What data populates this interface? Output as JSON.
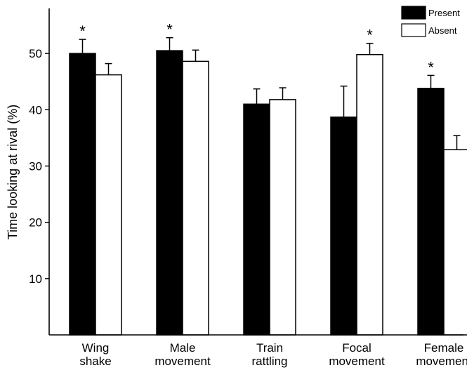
{
  "chart_data": {
    "type": "bar",
    "title": "",
    "xlabel": "",
    "ylabel": "Time looking at rival (%)",
    "ylim": [
      0,
      58
    ],
    "yticks": [
      10,
      20,
      30,
      40,
      50
    ],
    "grid": false,
    "legend_position": "top-right",
    "categories": [
      {
        "line1": "Wing",
        "line2": "shake"
      },
      {
        "line1": "Male",
        "line2": "movement"
      },
      {
        "line1": "Train",
        "line2": "rattling"
      },
      {
        "line1": "Focal",
        "line2": "movement"
      },
      {
        "line1": "Female",
        "line2": "movement"
      }
    ],
    "series": [
      {
        "name": "Present",
        "color": "#000000",
        "values": [
          50.0,
          50.5,
          41.0,
          38.7,
          43.8
        ],
        "errors": [
          2.5,
          2.3,
          2.7,
          5.5,
          2.3
        ]
      },
      {
        "name": "Absent",
        "color": "#ffffff",
        "values": [
          46.2,
          48.6,
          41.8,
          49.8,
          32.9
        ],
        "errors": [
          2.0,
          2.0,
          2.1,
          2.0,
          2.5
        ]
      }
    ],
    "significance": [
      "*",
      "*",
      "",
      "*",
      "*"
    ]
  }
}
